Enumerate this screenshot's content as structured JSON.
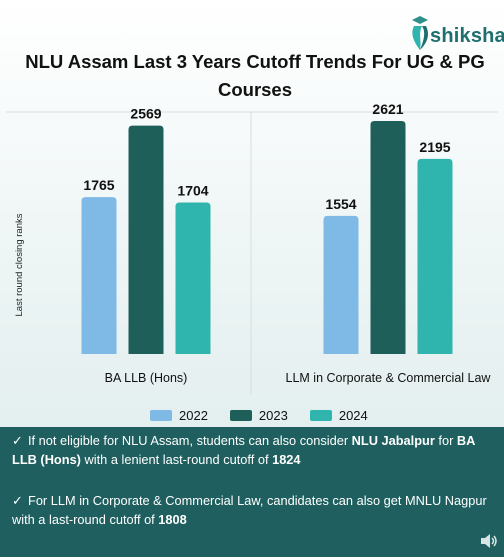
{
  "brand": {
    "name": "shiksha",
    "logo_icon": "graduation-cap-icon"
  },
  "title": "NLU Assam Last 3 Years Cutoff Trends For UG & PG Courses",
  "chart_data": {
    "type": "bar",
    "title": "NLU Assam Last 3 Years Cutoff Trends For UG & PG Courses",
    "ylabel": "Last round closing ranks",
    "xlabel": "",
    "categories": [
      "BA LLB (Hons)",
      "LLM in Corporate & Commercial Law"
    ],
    "series": [
      {
        "name": "2022",
        "values": [
          1765,
          1554
        ],
        "color": "#7fb9e6"
      },
      {
        "name": "2023",
        "values": [
          2569,
          2621
        ],
        "color": "#1f5f5a"
      },
      {
        "name": "2024",
        "values": [
          1704,
          2195
        ],
        "color": "#2fb5ad"
      }
    ],
    "ylim": [
      0,
      2700
    ],
    "grid": false,
    "legend": "bottom"
  },
  "notes": [
    {
      "check": "✓",
      "parts": [
        {
          "text": "If not eligible for NLU Assam, students can also consider ",
          "bold": false
        },
        {
          "text": "NLU Jabalpur",
          "bold": true
        },
        {
          "text": " for ",
          "bold": false
        },
        {
          "text": "BA LLB (Hons)",
          "bold": true
        },
        {
          "text": " with a lenient last-round cutoff of ",
          "bold": false
        },
        {
          "text": "1824",
          "bold": true
        }
      ]
    },
    {
      "check": "✓",
      "parts": [
        {
          "text": "For LLM in Corporate & Commercial Law, candidates can also get MNLU Nagpur with a last-round cutoff of ",
          "bold": false
        },
        {
          "text": "1808",
          "bold": true
        }
      ]
    }
  ],
  "colors": {
    "notes_bg": "#1f5f5f",
    "brand": "#1f6f6f"
  },
  "icons": {
    "speaker": "speaker-icon"
  }
}
